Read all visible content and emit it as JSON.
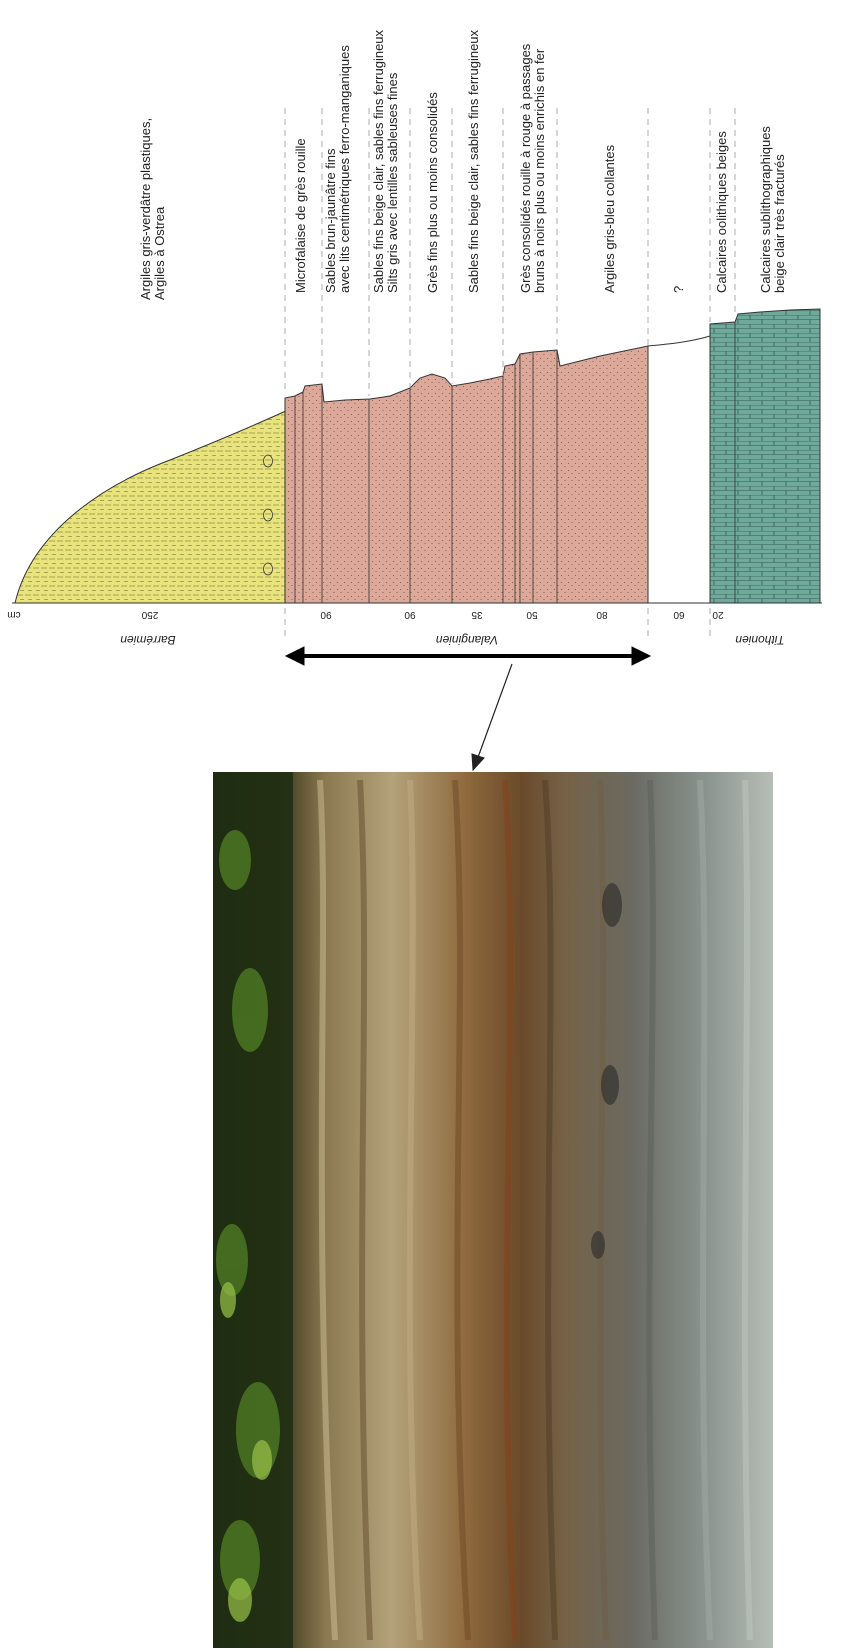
{
  "unit_label": "cm",
  "stages": [
    {
      "id": "barremien",
      "label": "Barrémien"
    },
    {
      "id": "valanginien",
      "label": "Valanginien"
    },
    {
      "id": "tithonien",
      "label": "Tithonien"
    }
  ],
  "thickness_ticks": [
    {
      "id": "t250",
      "label": "250"
    },
    {
      "id": "t90a",
      "label": "90"
    },
    {
      "id": "t90b",
      "label": "90"
    },
    {
      "id": "t35",
      "label": "35"
    },
    {
      "id": "t50",
      "label": "50"
    },
    {
      "id": "t80",
      "label": "80"
    },
    {
      "id": "t60",
      "label": "60"
    },
    {
      "id": "t20",
      "label": "20"
    }
  ],
  "descriptions": [
    {
      "id": "d1",
      "lines": [
        "Argiles gris-verdâtre plastiques,",
        "Argiles à Ostrea"
      ]
    },
    {
      "id": "d2",
      "lines": [
        "Microfalaise de grès rouille"
      ]
    },
    {
      "id": "d3",
      "lines": [
        "Sables brun-jaunâtre fins",
        "avec lits centimétriques ferro-manganiques"
      ]
    },
    {
      "id": "d4",
      "lines": [
        "Sables fins beige clair, sables fins ferrugineux",
        "Silts gris avec lentilles sableuses fines"
      ]
    },
    {
      "id": "d5",
      "lines": [
        "Grès fins plus ou moins consolidés"
      ]
    },
    {
      "id": "d6",
      "lines": [
        "Sables fins beige clair, sables fins ferrugineux"
      ]
    },
    {
      "id": "d7",
      "lines": [
        "Grès consolidés rouille à rouge à passages",
        "bruns à noirs plus ou moins enrichis en fer"
      ]
    },
    {
      "id": "d8",
      "lines": [
        "Argiles gris-bleu collantes"
      ]
    },
    {
      "id": "d9",
      "lines": [
        "?"
      ]
    },
    {
      "id": "d10",
      "lines": [
        "Calcaires oolithiques beiges"
      ]
    },
    {
      "id": "d11",
      "lines": [
        "Calcaires sublithographiques",
        "beige clair très fracturés"
      ]
    }
  ],
  "colors": {
    "clay": "#e6e27a",
    "sandstone": "#d9a596",
    "limestone": "#6ea89a",
    "outline": "#333333"
  }
}
